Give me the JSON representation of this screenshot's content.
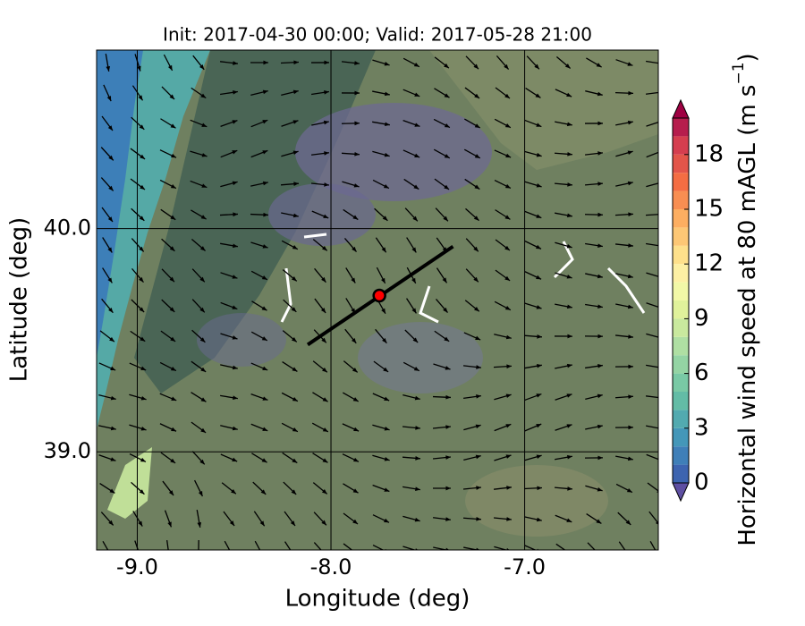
{
  "chart_data": {
    "type": "map",
    "title": "Init: 2017-04-30 00:00; Valid: 2017-05-28 21:00",
    "x_label": "Longitude (deg)",
    "y_label": "Latitude (deg)",
    "xlim": [
      -9.21,
      -6.31
    ],
    "ylim": [
      38.56,
      40.8
    ],
    "xticks": [
      {
        "value": -9.0,
        "label": "-9.0"
      },
      {
        "value": -8.0,
        "label": "-8.0"
      },
      {
        "value": -7.0,
        "label": "-7.0"
      }
    ],
    "yticks": [
      {
        "value": 39.0,
        "label": "39.0"
      },
      {
        "value": 40.0,
        "label": "40.0"
      }
    ],
    "grid": true,
    "point": {
      "lon": -7.75,
      "lat": 39.7,
      "color": "#ff0000"
    },
    "transect": {
      "lon": [
        -8.12,
        -7.37
      ],
      "lat": [
        39.48,
        39.92
      ],
      "color": "#000000"
    },
    "colorbar": {
      "label": "Horizontal wind speed at 80 mAGL (m s",
      "label_superscript": "−1",
      "label_close": ")",
      "lim": [
        0,
        20
      ],
      "ticks": [
        0,
        3,
        6,
        9,
        12,
        15,
        18
      ],
      "band_colors": [
        "#3d64b0",
        "#3f7fb8",
        "#4497b9",
        "#52aab0",
        "#63bca6",
        "#79c9a5",
        "#94d4a4",
        "#afdfa3",
        "#c9e99e",
        "#e0f29b",
        "#f2f8a7",
        "#fdf0a4",
        "#fee08b",
        "#fdc775",
        "#fdae61",
        "#f88e52",
        "#f46d43",
        "#e3554a",
        "#d53e4f",
        "#b61d4d"
      ],
      "under_color": "#5e4fa2",
      "over_color": "#9e0142"
    }
  }
}
